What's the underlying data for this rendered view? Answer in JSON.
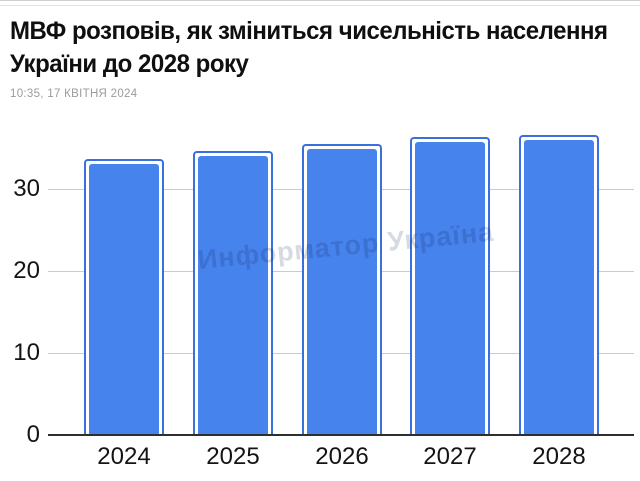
{
  "article": {
    "title_line1": "МВФ розповів, як зміниться чисельність населення",
    "title_line2": "України до 2028 року",
    "timestamp": "10:35, 17 КВІТНЯ 2024"
  },
  "watermark": "Информатор Україна",
  "colors": {
    "bar_fill": "#4783ec",
    "bar_stroke": "#3a70dd",
    "gridline": "#cbcbcb",
    "axis_line": "#2e2e2e",
    "title_text": "#0f0f0f",
    "timestamp_text": "#9b9b9b",
    "tick_label_text": "#141414"
  },
  "chart_data": {
    "type": "bar",
    "title": "МВФ розповів, як зміниться чисельність населення України до 2028 року",
    "categories": [
      "2024",
      "2025",
      "2026",
      "2027",
      "2028"
    ],
    "values": [
      33.6,
      34.6,
      35.5,
      36.3,
      36.6
    ],
    "xlabel": "",
    "ylabel": "",
    "yticks": [
      0,
      10,
      20,
      30
    ],
    "ylim": [
      0,
      37
    ],
    "grid": true,
    "legend": false
  }
}
